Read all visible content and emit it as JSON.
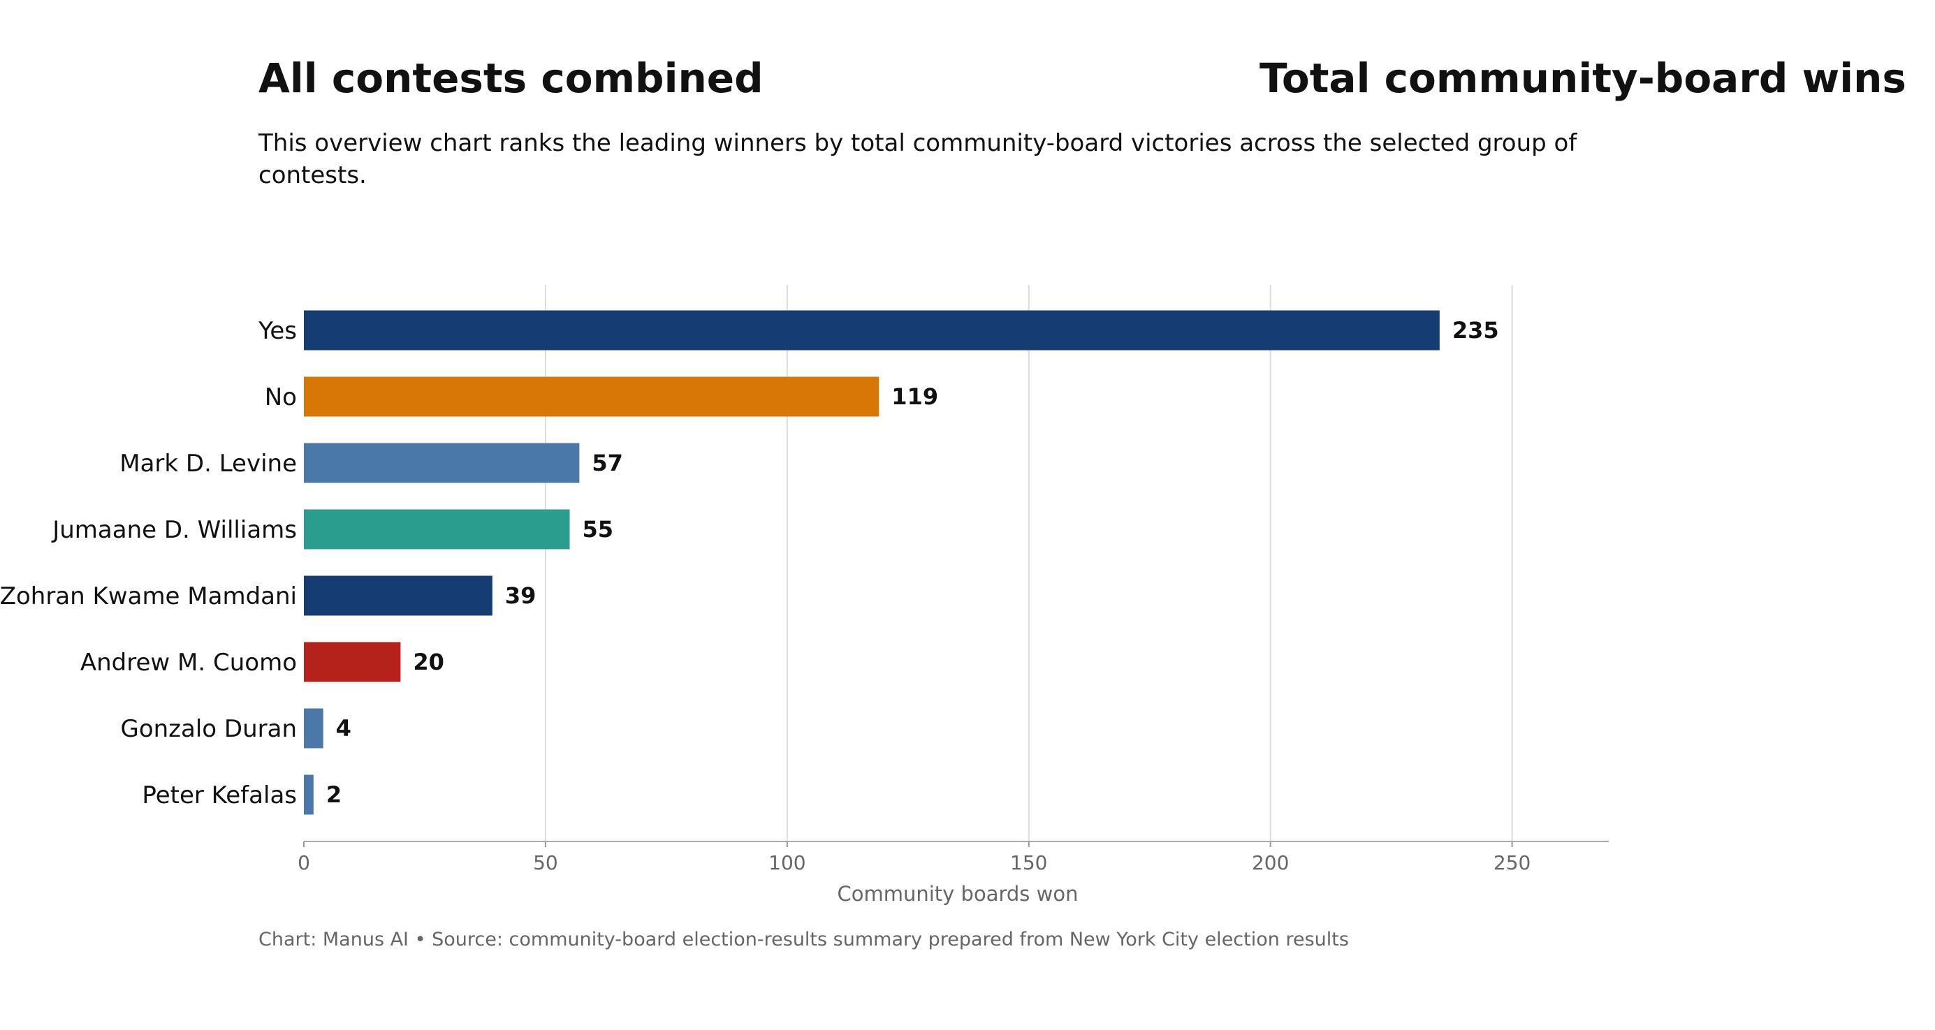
{
  "header": {
    "title_left": "All contests combined",
    "title_right": "Total community-board wins",
    "subtitle": "This overview chart ranks the leading winners by total community-board victories across the selected group of contests."
  },
  "footer": {
    "source": "Chart: Manus AI • Source: community-board election-results summary prepared from New York City election results"
  },
  "chart_data": {
    "type": "bar",
    "orientation": "horizontal",
    "categories": [
      "Yes",
      "No",
      "Mark D. Levine",
      "Jumaane D. Williams",
      "Zohran Kwame Mamdani",
      "Andrew M. Cuomo",
      "Gonzalo Duran",
      "Peter Kefalas"
    ],
    "values": [
      235,
      119,
      57,
      55,
      39,
      20,
      4,
      2
    ],
    "colors": [
      "#163d73",
      "#d97706",
      "#4a78a8",
      "#2a9d8f",
      "#163d73",
      "#b5221b",
      "#4a78a8",
      "#4a78a8"
    ],
    "xlabel": "Community boards won",
    "xlim": [
      0,
      270
    ],
    "xticks": [
      0,
      50,
      100,
      150,
      200,
      250
    ],
    "grid": "vertical"
  }
}
